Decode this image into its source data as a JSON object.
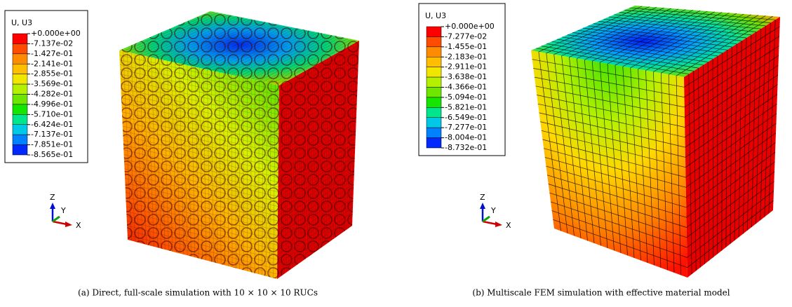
{
  "panels": [
    {
      "legend": {
        "title": "U, U3",
        "labels": [
          "+0.000e+00",
          "-7.137e-02",
          "-1.427e-01",
          "-2.141e-01",
          "-2.855e-01",
          "-3.569e-01",
          "-4.282e-01",
          "-4.996e-01",
          "-5.710e-01",
          "-6.424e-01",
          "-7.137e-01",
          "-7.851e-01",
          "-8.565e-01"
        ],
        "colors": [
          "#ff0000",
          "#ff4c00",
          "#ff8c00",
          "#ffbe00",
          "#f0e600",
          "#b4f000",
          "#6ee600",
          "#14e600",
          "#00e68c",
          "#00c8e6",
          "#0082ff",
          "#0028ff"
        ]
      },
      "triad": {
        "z": "Z",
        "y": "Y",
        "x": "X"
      },
      "caption": "(a) Direct, full-scale simulation with 10 × 10 × 10 RUCs"
    },
    {
      "legend": {
        "title": "U, U3",
        "labels": [
          "+0.000e+00",
          "-7.277e-02",
          "-1.455e-01",
          "-2.183e-01",
          "-2.911e-01",
          "-3.638e-01",
          "-4.366e-01",
          "-5.094e-01",
          "-5.821e-01",
          "-6.549e-01",
          "-7.277e-01",
          "-8.004e-01",
          "-8.732e-01"
        ],
        "colors": [
          "#ff0000",
          "#ff4c00",
          "#ff8c00",
          "#ffbe00",
          "#f0e600",
          "#b4f000",
          "#6ee600",
          "#14e600",
          "#00e68c",
          "#00c8e6",
          "#0082ff",
          "#0028ff"
        ]
      },
      "triad": {
        "z": "Z",
        "y": "Y",
        "x": "X"
      },
      "caption": "(b) Multiscale FEM simulation with effective material model"
    }
  ]
}
